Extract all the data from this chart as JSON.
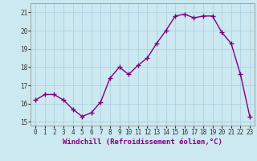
{
  "x": [
    0,
    1,
    2,
    3,
    4,
    5,
    6,
    7,
    8,
    9,
    10,
    11,
    12,
    13,
    14,
    15,
    16,
    17,
    18,
    19,
    20,
    21,
    22,
    23
  ],
  "y": [
    16.2,
    16.5,
    16.5,
    16.2,
    15.7,
    15.3,
    15.5,
    16.1,
    17.4,
    18.0,
    17.6,
    18.1,
    18.5,
    19.3,
    20.0,
    20.8,
    20.9,
    20.7,
    20.8,
    20.8,
    19.9,
    19.3,
    17.6,
    15.3
  ],
  "line_color": "#7f007f",
  "marker": "+",
  "markersize": 4,
  "linewidth": 1.0,
  "xlabel": "Windchill (Refroidissement éolien,°C)",
  "xtick_labels": [
    "0",
    "1",
    "2",
    "3",
    "4",
    "5",
    "6",
    "7",
    "8",
    "9",
    "10",
    "11",
    "12",
    "13",
    "14",
    "15",
    "16",
    "17",
    "18",
    "19",
    "20",
    "21",
    "22",
    "23"
  ],
  "ytick_labels": [
    "15",
    "16",
    "17",
    "18",
    "19",
    "20",
    "21"
  ],
  "ylim": [
    14.8,
    21.5
  ],
  "xlim": [
    -0.5,
    23.5
  ],
  "background_color": "#cce8f0",
  "grid_color": "#aaccdd",
  "tick_fontsize": 5.5,
  "xlabel_fontsize": 6.5
}
